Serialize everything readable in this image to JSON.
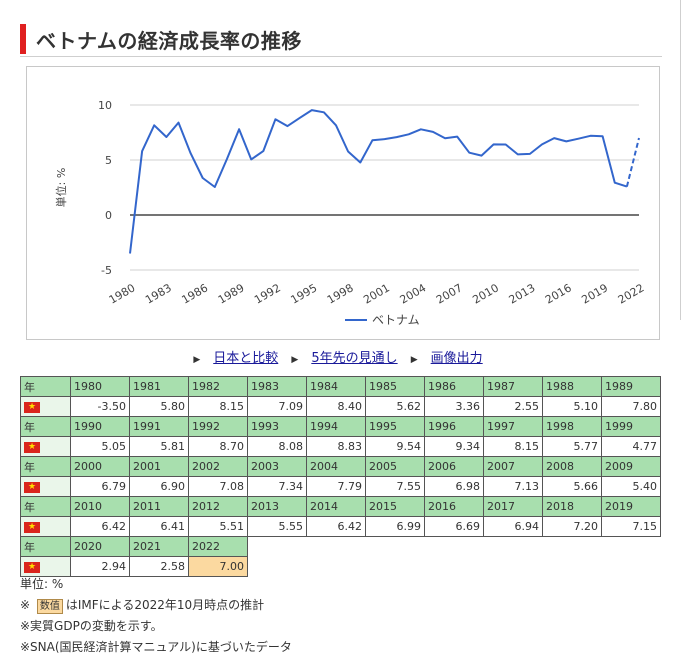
{
  "page": {
    "title": "ベトナムの経済成長率の推移"
  },
  "chart_data": {
    "type": "line",
    "ylabel": "単位: %",
    "ylim": [
      -5,
      10
    ],
    "yticks": [
      -5,
      0,
      5,
      10
    ],
    "xtick_labels": [
      "1980",
      "1983",
      "1986",
      "1989",
      "1992",
      "1995",
      "1998",
      "2001",
      "2004",
      "2007",
      "2010",
      "2013",
      "2016",
      "2019",
      "2022"
    ],
    "x": [
      1980,
      1981,
      1982,
      1983,
      1984,
      1985,
      1986,
      1987,
      1988,
      1989,
      1990,
      1991,
      1992,
      1993,
      1994,
      1995,
      1996,
      1997,
      1998,
      1999,
      2000,
      2001,
      2002,
      2003,
      2004,
      2005,
      2006,
      2007,
      2008,
      2009,
      2010,
      2011,
      2012,
      2013,
      2014,
      2015,
      2016,
      2017,
      2018,
      2019,
      2020,
      2021,
      2022
    ],
    "series": [
      {
        "name": "ベトナム",
        "color": "#3366cc",
        "estimate_from": 2021,
        "values": [
          -3.5,
          5.8,
          8.15,
          7.09,
          8.4,
          5.62,
          3.36,
          2.55,
          5.1,
          7.8,
          5.05,
          5.81,
          8.7,
          8.08,
          8.83,
          9.54,
          9.34,
          8.15,
          5.77,
          4.77,
          6.79,
          6.9,
          7.08,
          7.34,
          7.79,
          7.55,
          6.98,
          7.13,
          5.66,
          5.4,
          6.42,
          6.41,
          5.51,
          5.55,
          6.42,
          6.99,
          6.69,
          6.94,
          7.2,
          7.15,
          2.94,
          2.58,
          7.0
        ]
      }
    ],
    "legend_position": "bottom",
    "grid": true
  },
  "links": {
    "compare": "日本と比較",
    "forecast": "5年先の見通し",
    "export": "画像出力"
  },
  "table": {
    "year_label": "年",
    "rows": [
      {
        "years": [
          "1980",
          "1981",
          "1982",
          "1983",
          "1984",
          "1985",
          "1986",
          "1987",
          "1988",
          "1989"
        ],
        "values": [
          "-3.50",
          "5.80",
          "8.15",
          "7.09",
          "8.40",
          "5.62",
          "3.36",
          "2.55",
          "5.10",
          "7.80"
        ]
      },
      {
        "years": [
          "1990",
          "1991",
          "1992",
          "1993",
          "1994",
          "1995",
          "1996",
          "1997",
          "1998",
          "1999"
        ],
        "values": [
          "5.05",
          "5.81",
          "8.70",
          "8.08",
          "8.83",
          "9.54",
          "9.34",
          "8.15",
          "5.77",
          "4.77"
        ]
      },
      {
        "years": [
          "2000",
          "2001",
          "2002",
          "2003",
          "2004",
          "2005",
          "2006",
          "2007",
          "2008",
          "2009"
        ],
        "values": [
          "6.79",
          "6.90",
          "7.08",
          "7.34",
          "7.79",
          "7.55",
          "6.98",
          "7.13",
          "5.66",
          "5.40"
        ]
      },
      {
        "years": [
          "2010",
          "2011",
          "2012",
          "2013",
          "2014",
          "2015",
          "2016",
          "2017",
          "2018",
          "2019"
        ],
        "values": [
          "6.42",
          "6.41",
          "5.51",
          "5.55",
          "6.42",
          "6.99",
          "6.69",
          "6.94",
          "7.20",
          "7.15"
        ]
      },
      {
        "years": [
          "2020",
          "2021",
          "2022"
        ],
        "values": [
          "2.94",
          "2.58",
          "7.00"
        ]
      }
    ],
    "estimate_years": [
      "2022"
    ]
  },
  "notes": {
    "unit": "単位: %",
    "mark": "※",
    "badge": "数值",
    "estimate_note": "はIMFによる2022年10月時点の推計",
    "gdp_note": "※実質GDPの変動を示す。",
    "sna_note": "※SNA(国民経済計算マニュアル)に基づいたデータ"
  }
}
